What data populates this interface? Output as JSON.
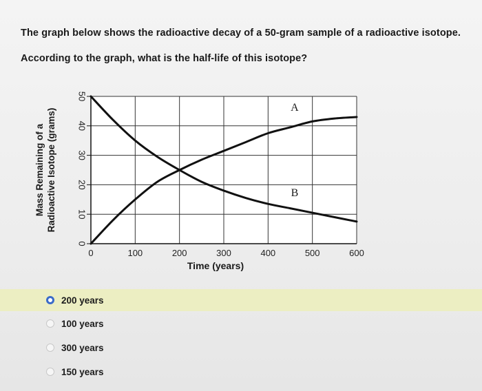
{
  "question": {
    "line1": "The graph below shows the radioactive decay of a 50-gram sample of a radioactive isotope.",
    "line2": "According to the graph, what is the half-life of this isotope?"
  },
  "chart_data": {
    "type": "line",
    "xlabel": "Time (years)",
    "ylabel": [
      "Mass Remaining of a",
      "Radioactive Isotope (grams)"
    ],
    "xlim": [
      0,
      600
    ],
    "ylim": [
      0,
      50
    ],
    "x_ticks": [
      0,
      100,
      200,
      300,
      400,
      500,
      600
    ],
    "y_ticks": [
      0,
      10,
      20,
      30,
      40,
      50
    ],
    "grid": true,
    "series": [
      {
        "name": "A",
        "x": [
          0,
          50,
          100,
          150,
          200,
          250,
          300,
          350,
          400,
          450,
          500,
          550,
          600
        ],
        "y": [
          0,
          8,
          15,
          21,
          25,
          28.5,
          31.5,
          34.5,
          37.5,
          39.5,
          41.5,
          42.5,
          43
        ]
      },
      {
        "name": "B",
        "x": [
          0,
          50,
          100,
          150,
          200,
          250,
          300,
          350,
          400,
          450,
          500,
          550,
          600
        ],
        "y": [
          50,
          42,
          35,
          29.5,
          25,
          21,
          18,
          15.5,
          13.5,
          12,
          10.5,
          9,
          7.5
        ]
      }
    ],
    "annotations": [
      {
        "text": "A",
        "x": 460,
        "y": 46
      },
      {
        "text": "B",
        "x": 460,
        "y": 17
      }
    ]
  },
  "options": [
    {
      "label": "200 years",
      "selected": true
    },
    {
      "label": "100 years",
      "selected": false
    },
    {
      "label": "300 years",
      "selected": false
    },
    {
      "label": "150 years",
      "selected": false
    }
  ]
}
